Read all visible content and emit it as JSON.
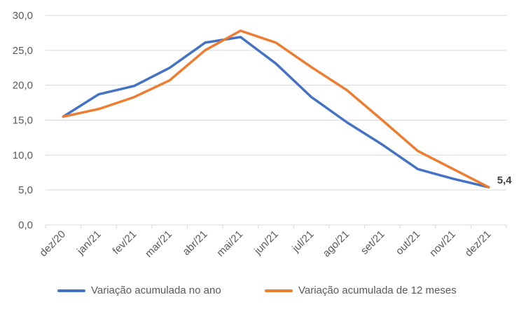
{
  "chart_data": {
    "type": "line",
    "categories": [
      "dez/20",
      "jan/21",
      "fev/21",
      "mar/21",
      "abr/21",
      "mai/21",
      "jun/21",
      "jul/21",
      "ago/21",
      "set/21",
      "out/21",
      "nov/21",
      "dez/21"
    ],
    "series": [
      {
        "name": "Variação acumulada no ano",
        "color": "#4472C4",
        "values": [
          15.5,
          18.7,
          19.9,
          22.5,
          26.1,
          26.9,
          23.1,
          18.3,
          14.7,
          11.5,
          8.0,
          6.6,
          5.4
        ]
      },
      {
        "name": "Variação acumulada de 12 meses",
        "color": "#ED7D31",
        "values": [
          15.5,
          16.6,
          18.3,
          20.7,
          25.0,
          27.8,
          26.1,
          22.6,
          19.3,
          15.0,
          10.6,
          8.0,
          5.4
        ]
      }
    ],
    "y_ticks": [
      "0,0",
      "5,0",
      "10,0",
      "15,0",
      "20,0",
      "25,0",
      "30,0"
    ],
    "ylim": [
      0,
      30
    ],
    "grid": true,
    "legend_position": "bottom",
    "end_label": "5,4"
  }
}
